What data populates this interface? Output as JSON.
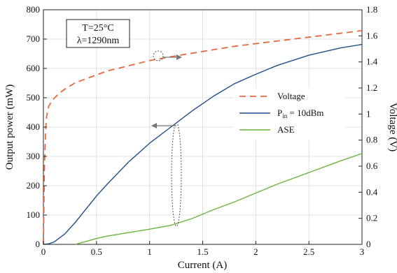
{
  "chart_data": {
    "type": "line",
    "xlabel": "Current (A)",
    "ylabel_left": "Output power (mW)",
    "ylabel_right": "Voltage (V)",
    "xlim": [
      0,
      3
    ],
    "ylim_left": [
      0,
      800
    ],
    "ylim_right": [
      0,
      1.8
    ],
    "x_ticks": [
      "0",
      "0.5",
      "1",
      "1.5",
      "2",
      "2.5",
      "3"
    ],
    "y_left_ticks": [
      "0",
      "100",
      "200",
      "300",
      "400",
      "500",
      "600",
      "700",
      "800"
    ],
    "y_right_ticks": [
      "0",
      "0.2",
      "0.4",
      "0.6",
      "0.8",
      "1",
      "1.2",
      "1.4",
      "1.6",
      "1.8"
    ],
    "grid": true,
    "legend_position": "right",
    "annotation": {
      "temperature": "T=25°C",
      "wavelength": "λ=1290nm"
    },
    "series": [
      {
        "name": "Voltage",
        "axis": "right",
        "color": "#e8693c",
        "dash": "dashed",
        "x": [
          0,
          0.01,
          0.02,
          0.03,
          0.05,
          0.08,
          0.1,
          0.15,
          0.2,
          0.3,
          0.4,
          0.5,
          0.6,
          0.8,
          1.0,
          1.2,
          1.5,
          1.8,
          2.0,
          2.5,
          3.0
        ],
        "y": [
          0,
          0.6,
          0.85,
          0.98,
          1.06,
          1.1,
          1.12,
          1.16,
          1.19,
          1.24,
          1.27,
          1.3,
          1.33,
          1.37,
          1.41,
          1.44,
          1.48,
          1.52,
          1.54,
          1.59,
          1.64
        ]
      },
      {
        "name": "P_in = 10dBm",
        "axis": "left",
        "color": "#1f4e8a",
        "dash": "solid",
        "x": [
          0,
          0.05,
          0.1,
          0.2,
          0.3,
          0.4,
          0.5,
          0.6,
          0.8,
          1.0,
          1.2,
          1.4,
          1.6,
          1.8,
          2.0,
          2.2,
          2.5,
          2.8,
          3.0
        ],
        "y": [
          0,
          2,
          8,
          35,
          75,
          120,
          165,
          205,
          280,
          345,
          400,
          455,
          505,
          548,
          580,
          610,
          645,
          670,
          682
        ]
      },
      {
        "name": "ASE",
        "axis": "left",
        "color": "#6cb33f",
        "dash": "solid",
        "x": [
          0.3,
          0.35,
          0.4,
          0.5,
          0.6,
          0.8,
          1.0,
          1.2,
          1.4,
          1.6,
          1.8,
          2.0,
          2.2,
          2.5,
          2.8,
          3.0
        ],
        "y": [
          0,
          5,
          10,
          20,
          28,
          40,
          52,
          65,
          88,
          118,
          145,
          175,
          205,
          245,
          285,
          310
        ]
      }
    ],
    "legend_labels": {
      "voltage": "Voltage",
      "pin_prefix": "P",
      "pin_sub": "in",
      "pin_suffix": " = 10dBm",
      "ase": "ASE"
    }
  }
}
